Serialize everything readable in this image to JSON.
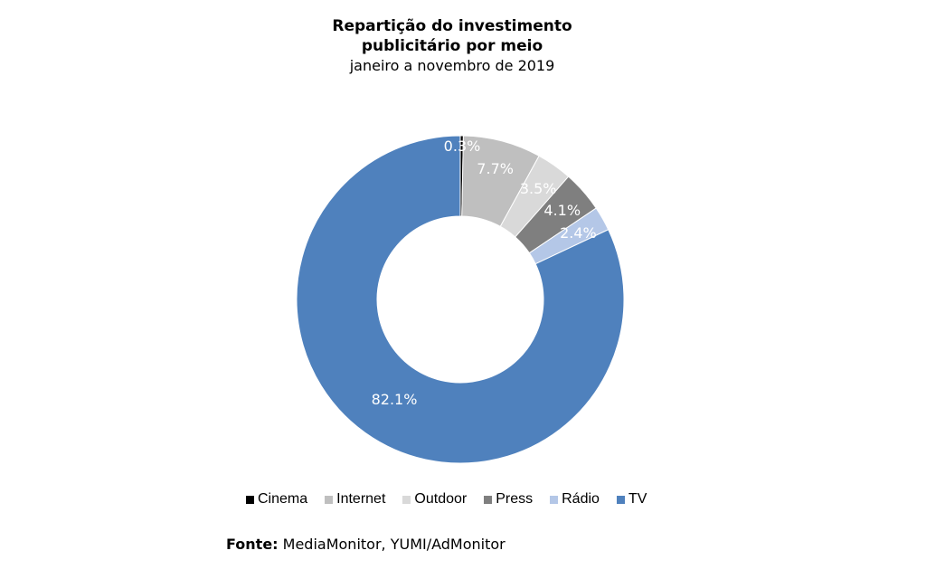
{
  "title_line1": "Repartição do investimento",
  "title_line2": "publicitário por meio",
  "subtitle": "janeiro a novembro de 2019",
  "source_label": "Fonte:",
  "source_text": "MediaMonitor, YUMI/AdMonitor",
  "chart_data": {
    "type": "pie",
    "variant": "donut",
    "title": "Repartição do investimento publicitário por meio",
    "subtitle": "janeiro a novembro de 2019",
    "legend_position": "bottom",
    "categories": [
      "Cinema",
      "Internet",
      "Outdoor",
      "Press",
      "Rádio",
      "TV"
    ],
    "values": [
      0.3,
      7.7,
      3.5,
      4.1,
      2.4,
      82.1
    ],
    "labels": [
      "0.3%",
      "7.7%",
      "3.5%",
      "4.1%",
      "2.4%",
      "82.1%"
    ],
    "colors": [
      "#000000",
      "#bfbfbf",
      "#d9d9d9",
      "#7f7f7f",
      "#b4c7e7",
      "#4f81bd"
    ]
  }
}
